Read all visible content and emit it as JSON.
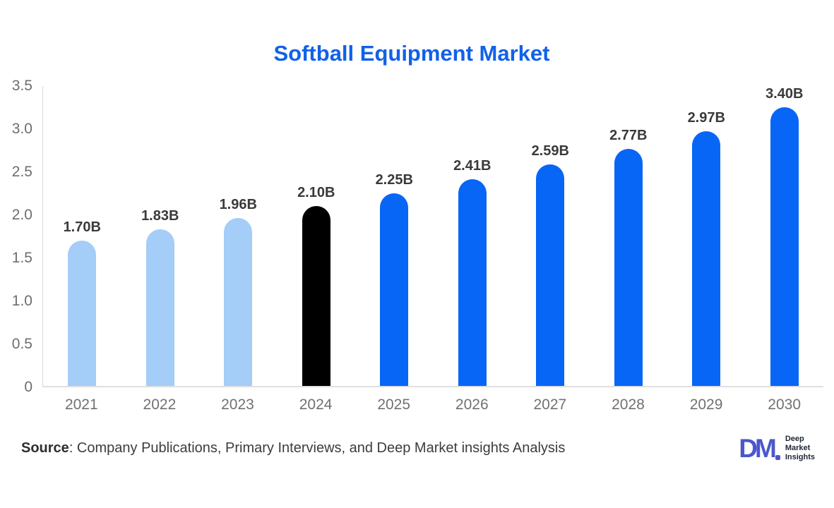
{
  "chart_data": {
    "type": "bar",
    "title": "Softball Equipment Market",
    "title_color": "#1161e9",
    "categories": [
      "2021",
      "2022",
      "2023",
      "2024",
      "2025",
      "2026",
      "2027",
      "2028",
      "2029",
      "2030"
    ],
    "values": [
      1.7,
      1.83,
      1.96,
      2.1,
      2.25,
      2.41,
      2.59,
      2.77,
      2.97,
      3.4
    ],
    "value_labels": [
      "1.70B",
      "1.83B",
      "1.96B",
      "2.10B",
      "2.25B",
      "2.41B",
      "2.59B",
      "2.77B",
      "2.97B",
      "3.40B"
    ],
    "xlabel": "",
    "ylabel": "",
    "ylim": [
      0,
      3.5
    ],
    "y_tick_values": [
      0,
      0.5,
      1.0,
      1.5,
      2.0,
      2.5,
      3.0,
      3.5
    ],
    "y_tick_labels": [
      "0",
      "0.5",
      "1.0",
      "1.5",
      "2.0",
      "2.5",
      "3.0",
      "3.5"
    ],
    "grid": false,
    "legend": "none",
    "bar_color_keys": [
      "past",
      "past",
      "past",
      "current",
      "forecast",
      "forecast",
      "forecast",
      "forecast",
      "forecast",
      "forecast"
    ],
    "palette": {
      "past": "#a4cdf8",
      "current": "#000000",
      "forecast": "#0866f6"
    }
  },
  "footer": {
    "source_label": "Source",
    "source_rest": ": Company Publications, Primary Interviews, and Deep Market insights Analysis"
  },
  "logo": {
    "mark": "DM",
    "line1": "Deep",
    "line2": "Market",
    "line3": "Insights"
  }
}
